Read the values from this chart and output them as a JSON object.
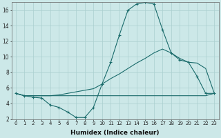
{
  "xlabel": "Humidex (Indice chaleur)",
  "background_color": "#cce8e8",
  "grid_color": "#aacfcf",
  "line_color": "#1a6b6b",
  "xlim": [
    -0.5,
    23.5
  ],
  "ylim": [
    2,
    17
  ],
  "yticks": [
    2,
    4,
    6,
    8,
    10,
    12,
    14,
    16
  ],
  "xticks": [
    0,
    1,
    2,
    3,
    4,
    5,
    6,
    7,
    8,
    9,
    10,
    11,
    12,
    13,
    14,
    15,
    16,
    17,
    18,
    19,
    20,
    21,
    22,
    23
  ],
  "line1_x": [
    0,
    1,
    2,
    3,
    4,
    5,
    6,
    7,
    8,
    9,
    10,
    11,
    12,
    13,
    14,
    15,
    16,
    17,
    18,
    19,
    20,
    21,
    22,
    23
  ],
  "line1_y": [
    5.3,
    5.0,
    4.8,
    4.7,
    3.8,
    3.5,
    2.9,
    2.2,
    2.2,
    3.5,
    6.5,
    9.3,
    12.8,
    16.0,
    16.8,
    17.0,
    16.8,
    13.5,
    10.5,
    9.6,
    9.3,
    7.5,
    5.3,
    5.3
  ],
  "line2_x": [
    0,
    1,
    2,
    3,
    4,
    5,
    6,
    7,
    8,
    9,
    10,
    11,
    12,
    13,
    14,
    15,
    16,
    17,
    18,
    19,
    20,
    21,
    22,
    23
  ],
  "line2_y": [
    5.3,
    5.0,
    5.0,
    5.0,
    5.0,
    5.1,
    5.3,
    5.5,
    5.7,
    5.9,
    6.5,
    7.2,
    7.8,
    8.5,
    9.2,
    9.8,
    10.5,
    11.0,
    10.5,
    9.8,
    9.3,
    9.2,
    8.5,
    5.3
  ],
  "line3_x": [
    0,
    1,
    2,
    3,
    4,
    5,
    6,
    7,
    8,
    9,
    10,
    11,
    12,
    13,
    14,
    15,
    16,
    17,
    18,
    19,
    20,
    21,
    22,
    23
  ],
  "line3_y": [
    5.3,
    5.0,
    5.0,
    5.0,
    5.0,
    5.0,
    5.0,
    5.0,
    5.0,
    5.0,
    5.0,
    5.0,
    5.0,
    5.0,
    5.0,
    5.0,
    5.0,
    5.0,
    5.0,
    5.0,
    5.0,
    5.0,
    5.0,
    5.3
  ]
}
